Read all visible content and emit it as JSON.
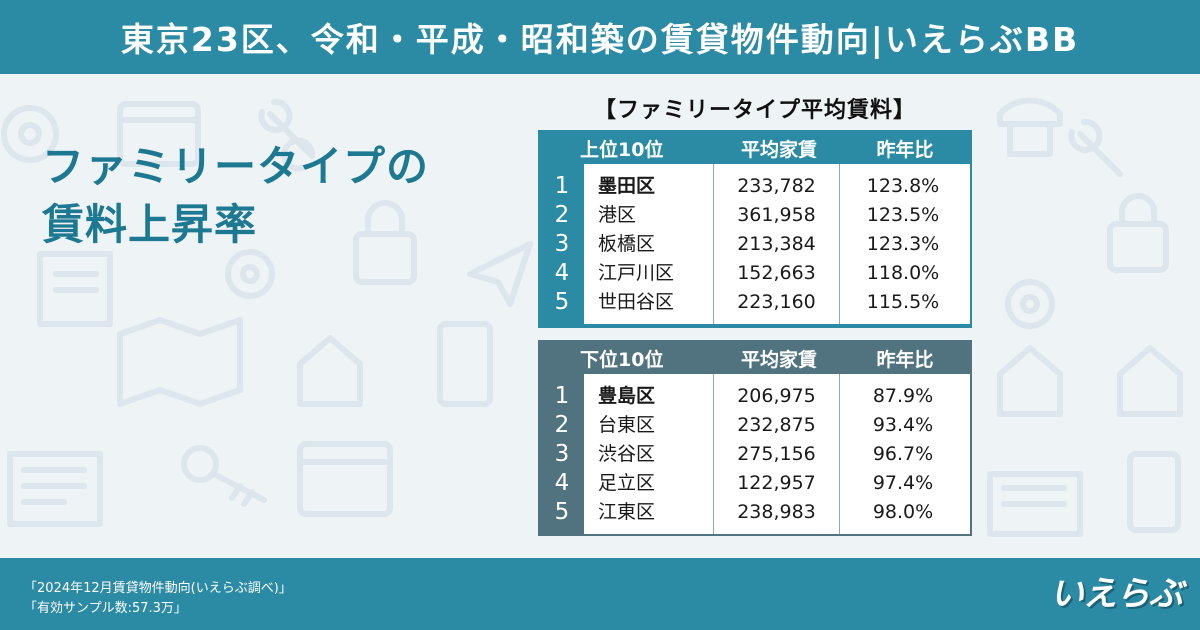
{
  "header": {
    "title": "東京23区、令和・平成・昭和築の賃貸物件動向|いえらぶBB"
  },
  "headline": {
    "line1": "ファミリータイプの",
    "line2": "賃料上昇率"
  },
  "table_title": "【ファミリータイプ平均賃料】",
  "top_table": {
    "headers": [
      "上位10位",
      "平均家賃",
      "昨年比"
    ],
    "rows": [
      {
        "rank": "1",
        "ward": "墨田区",
        "rent": "233,782",
        "ratio": "123.8%"
      },
      {
        "rank": "2",
        "ward": "港区",
        "rent": "361,958",
        "ratio": "123.5%"
      },
      {
        "rank": "3",
        "ward": "板橋区",
        "rent": "213,384",
        "ratio": "123.3%"
      },
      {
        "rank": "4",
        "ward": "江戸川区",
        "rent": "152,663",
        "ratio": "118.0%"
      },
      {
        "rank": "5",
        "ward": "世田谷区",
        "rent": "223,160",
        "ratio": "115.5%"
      }
    ]
  },
  "bottom_table": {
    "headers": [
      "下位10位",
      "平均家賃",
      "昨年比"
    ],
    "rows": [
      {
        "rank": "1",
        "ward": "豊島区",
        "rent": "206,975",
        "ratio": "87.9%"
      },
      {
        "rank": "2",
        "ward": "台東区",
        "rent": "232,875",
        "ratio": "93.4%"
      },
      {
        "rank": "3",
        "ward": "渋谷区",
        "rent": "275,156",
        "ratio": "96.7%"
      },
      {
        "rank": "4",
        "ward": "足立区",
        "rent": "122,957",
        "ratio": "97.4%"
      },
      {
        "rank": "5",
        "ward": "江東区",
        "rent": "238,983",
        "ratio": "98.0%"
      }
    ]
  },
  "footer": {
    "note1": "「2024年12月賃貸物件動向(いえらぶ調べ)」",
    "note2": "「有効サンプル数:57.3万」",
    "logo": "いえらぶ"
  },
  "colors": {
    "brand": "#2b8aa4",
    "headline": "#1d7892",
    "bottom_header": "#51737f"
  },
  "icons": [
    "gear-icon",
    "wrench-icon",
    "lock-icon",
    "paper-plane-icon",
    "map-icon",
    "key-icon",
    "house-icon",
    "tablet-icon",
    "book-icon",
    "browser-icon",
    "phone-icon"
  ]
}
